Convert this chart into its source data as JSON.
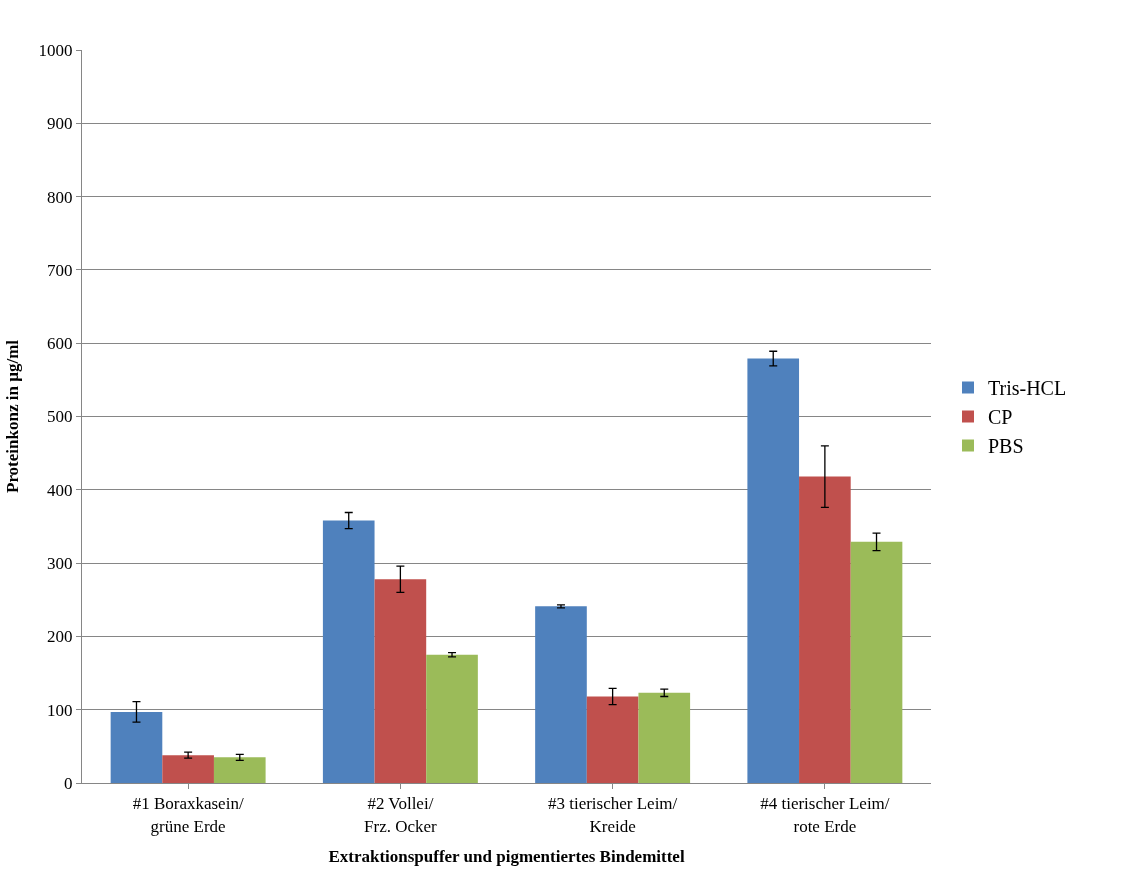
{
  "chart_data": {
    "type": "bar",
    "xlabel": "Extraktionspuffer und pigmentiertes Bindemittel",
    "ylabel": "Proteinkonz in µg/ml",
    "categories": [
      "#1 Boraxkasein/ grüne Erde",
      "#2 Vollei/ Frz. Ocker",
      "#3 tierischer Leim/ Kreide",
      "#4 tierischer Leim/ rote Erde"
    ],
    "series": [
      {
        "name": "Tris-HCL",
        "color": "#4f81bd",
        "values": [
          97,
          358,
          241,
          579
        ],
        "errors": [
          14,
          11,
          2,
          10
        ]
      },
      {
        "name": "CP",
        "color": "#c0504d",
        "values": [
          38,
          278,
          118,
          418
        ],
        "errors": [
          4,
          18,
          11,
          42
        ]
      },
      {
        "name": "PBS",
        "color": "#9bbb59",
        "values": [
          35,
          175,
          123,
          329
        ],
        "errors": [
          4,
          3,
          5,
          12
        ]
      }
    ],
    "ylim": [
      0,
      1000
    ],
    "yticks": [
      0,
      100,
      200,
      300,
      400,
      500,
      600,
      700,
      800,
      900,
      1000
    ],
    "grid": "y",
    "legend": "right"
  }
}
